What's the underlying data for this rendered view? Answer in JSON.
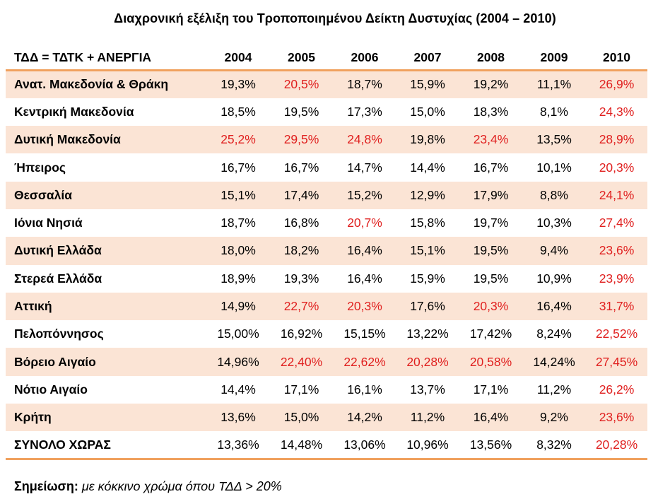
{
  "title": "Διαχρονική εξέλιξη του Τροποποιημένου Δείκτη Δυστυχίας (2004 – 2010)",
  "table": {
    "corner_label": "ΤΔΔ = ΤΔΤΚ + ΑΝΕΡΓΙΑ",
    "years": [
      "2004",
      "2005",
      "2006",
      "2007",
      "2008",
      "2009",
      "2010"
    ],
    "highlight_color": "#e0201f",
    "shade_color": "#fbe4d5",
    "rule_color": "#f0a15e",
    "rows": [
      {
        "region": "Ανατ. Μακεδονία & Θράκη",
        "shaded": true,
        "values": [
          "19,3%",
          "20,5%",
          "18,7%",
          "15,9%",
          "19,2%",
          "11,1%",
          "26,9%"
        ],
        "highlight": [
          false,
          true,
          false,
          false,
          false,
          false,
          true
        ]
      },
      {
        "region": "Κεντρική Μακεδονία",
        "shaded": false,
        "values": [
          "18,5%",
          "19,5%",
          "17,3%",
          "15,0%",
          "18,3%",
          "8,1%",
          "24,3%"
        ],
        "highlight": [
          false,
          false,
          false,
          false,
          false,
          false,
          true
        ]
      },
      {
        "region": "Δυτική Μακεδονία",
        "shaded": true,
        "values": [
          "25,2%",
          "29,5%",
          "24,8%",
          "19,8%",
          "23,4%",
          "13,5%",
          "28,9%"
        ],
        "highlight": [
          true,
          true,
          true,
          false,
          true,
          false,
          true
        ]
      },
      {
        "region": "Ήπειρος",
        "shaded": false,
        "values": [
          "16,7%",
          "16,7%",
          "14,7%",
          "14,4%",
          "16,7%",
          "10,1%",
          "20,3%"
        ],
        "highlight": [
          false,
          false,
          false,
          false,
          false,
          false,
          true
        ]
      },
      {
        "region": "Θεσσαλία",
        "shaded": true,
        "values": [
          "15,1%",
          "17,4%",
          "15,2%",
          "12,9%",
          "17,9%",
          "8,8%",
          "24,1%"
        ],
        "highlight": [
          false,
          false,
          false,
          false,
          false,
          false,
          true
        ]
      },
      {
        "region": "Ιόνια Νησιά",
        "shaded": false,
        "values": [
          "18,7%",
          "16,8%",
          "20,7%",
          "15,8%",
          "19,7%",
          "10,3%",
          "27,4%"
        ],
        "highlight": [
          false,
          false,
          true,
          false,
          false,
          false,
          true
        ]
      },
      {
        "region": "Δυτική Ελλάδα",
        "shaded": true,
        "values": [
          "18,0%",
          "18,2%",
          "16,4%",
          "15,1%",
          "19,5%",
          "9,4%",
          "23,6%"
        ],
        "highlight": [
          false,
          false,
          false,
          false,
          false,
          false,
          true
        ]
      },
      {
        "region": "Στερεά Ελλάδα",
        "shaded": false,
        "values": [
          "18,9%",
          "19,3%",
          "16,4%",
          "15,9%",
          "19,5%",
          "10,9%",
          "23,9%"
        ],
        "highlight": [
          false,
          false,
          false,
          false,
          false,
          false,
          true
        ]
      },
      {
        "region": "Αττική",
        "shaded": true,
        "values": [
          "14,9%",
          "22,7%",
          "20,3%",
          "17,6%",
          "20,3%",
          "16,4%",
          "31,7%"
        ],
        "highlight": [
          false,
          true,
          true,
          false,
          true,
          false,
          true
        ]
      },
      {
        "region": "Πελοπόννησος",
        "shaded": false,
        "values": [
          "15,00%",
          "16,92%",
          "15,15%",
          "13,22%",
          "17,42%",
          "8,24%",
          "22,52%"
        ],
        "highlight": [
          false,
          false,
          false,
          false,
          false,
          false,
          true
        ]
      },
      {
        "region": "Βόρειο Αιγαίο",
        "shaded": true,
        "values": [
          "14,96%",
          "22,40%",
          "22,62%",
          "20,28%",
          "20,58%",
          "14,24%",
          "27,45%"
        ],
        "highlight": [
          false,
          true,
          true,
          true,
          true,
          false,
          true
        ]
      },
      {
        "region": "Νότιο Αιγαίο",
        "shaded": false,
        "values": [
          "14,4%",
          "17,1%",
          "16,1%",
          "13,7%",
          "17,1%",
          "11,2%",
          "26,2%"
        ],
        "highlight": [
          false,
          false,
          false,
          false,
          false,
          false,
          true
        ]
      },
      {
        "region": "Κρήτη",
        "shaded": true,
        "values": [
          "13,6%",
          "15,0%",
          "14,2%",
          "11,2%",
          "16,4%",
          "9,2%",
          "23,6%"
        ],
        "highlight": [
          false,
          false,
          false,
          false,
          false,
          false,
          true
        ]
      },
      {
        "region": "ΣΥΝΟΛΟ ΧΩΡΑΣ",
        "shaded": false,
        "values": [
          "13,36%",
          "14,48%",
          "13,06%",
          "10,96%",
          "13,56%",
          "8,32%",
          "20,28%"
        ],
        "highlight": [
          false,
          false,
          false,
          false,
          false,
          false,
          true
        ]
      }
    ]
  },
  "note": {
    "label": "Σημείωση:",
    "text": "με κόκκινο χρώμα όπου ΤΔΔ > 20%"
  }
}
